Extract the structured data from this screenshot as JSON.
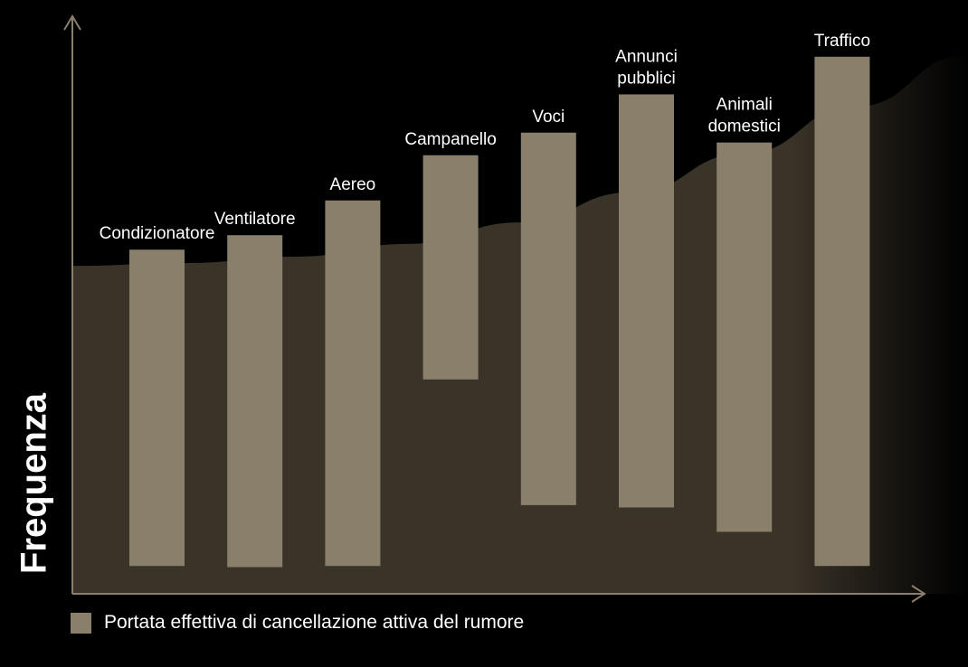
{
  "colors": {
    "background": "#000000",
    "area": "#3a3328",
    "bar": "#8a7f6a",
    "axis": "#8a7f6a",
    "text": "#ffffff"
  },
  "chart_data": {
    "type": "bar",
    "subtype": "floating-range",
    "ylabel": "Frequenza",
    "xlabel": "",
    "ylim": [
      0,
      100
    ],
    "grid": false,
    "legend_position": "bottom-left",
    "categories": [
      "Condizionatore",
      "Ventilatore",
      "Aereo",
      "Campanello",
      "Voci",
      "Annunci pubblici",
      "Animali domestici",
      "Traffico"
    ],
    "series": [
      {
        "name": "Portata effettiva di cancellazione attiva del rumore",
        "ranges": [
          [
            4.8,
            59.4
          ],
          [
            4.6,
            61.9
          ],
          [
            4.8,
            67.9
          ],
          [
            37.0,
            75.7
          ],
          [
            15.3,
            79.6
          ],
          [
            14.9,
            86.2
          ],
          [
            10.7,
            77.9
          ],
          [
            4.8,
            92.7
          ]
        ]
      }
    ],
    "background_area": {
      "x": [
        0,
        1,
        2,
        3,
        4,
        5,
        6,
        7,
        8
      ],
      "y": [
        56.6,
        57.1,
        58.2,
        60.4,
        64.1,
        69.3,
        76.0,
        84.1,
        93.0
      ]
    }
  }
}
